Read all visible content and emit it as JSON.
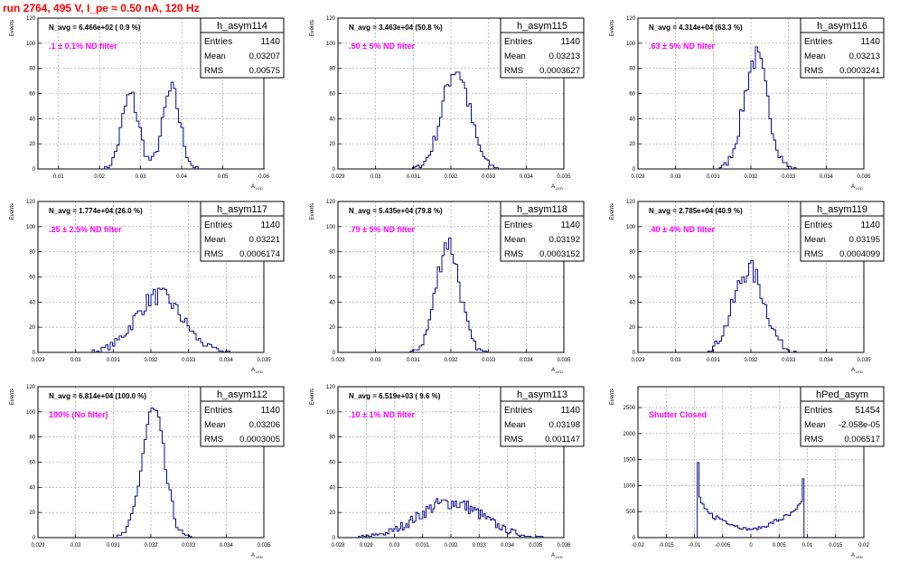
{
  "title": "run 2764,   495 V, I_pe ≈ 0.50 nA, 120 Hz",
  "colors": {
    "hist": "#0a0a8c",
    "label": "#ff00ff",
    "title": "#ff0000",
    "grid": "#999999"
  },
  "ylabel": "Events",
  "xlabel_main": "A",
  "xlabel_sub": "LED",
  "chart_data": [
    {
      "type": "histogram",
      "name": "h_asym114",
      "navg": "N_avg = 6.466e+02 ( 0.9 %)",
      "label": ".1 ± 0.1% ND filter",
      "stats": [
        {
          "k": "Entries",
          "v": "1140"
        },
        {
          "k": "Mean",
          "v": "0.03207"
        },
        {
          "k": "RMS",
          "v": "0.00575"
        }
      ],
      "xlim": [
        0.005,
        0.06
      ],
      "ylim": [
        0,
        120
      ],
      "xticks": [
        0.01,
        0.02,
        0.03,
        0.04,
        0.05,
        0.06
      ],
      "xtick_labels": [
        "0.01",
        "0.02",
        "0.03",
        "0.04",
        "0.05",
        "0.06"
      ],
      "yticks": [
        0,
        20,
        40,
        60,
        80,
        100,
        120
      ],
      "peaks": [
        {
          "mu": 0.0275,
          "sigma": 0.0021,
          "amp": 58
        },
        {
          "mu": 0.0375,
          "sigma": 0.0021,
          "amp": 62
        }
      ],
      "bin": 0.0006
    },
    {
      "type": "histogram",
      "name": "h_asym115",
      "navg": "N_avg = 3.463e+04 (50.8 %)",
      "label": ".50 ± 5% ND filter",
      "stats": [
        {
          "k": "Entries",
          "v": "1140"
        },
        {
          "k": "Mean",
          "v": "0.03213"
        },
        {
          "k": "RMS",
          "v": "0.0003627"
        }
      ],
      "xlim": [
        0.029,
        0.035
      ],
      "ylim": [
        0,
        120
      ],
      "xticks": [
        0.029,
        0.03,
        0.031,
        0.032,
        0.033,
        0.034,
        0.035
      ],
      "xtick_labels": [
        "0.029",
        "0.03",
        "0.031",
        "0.032",
        "0.033",
        "0.034",
        "0.035"
      ],
      "yticks": [
        0,
        20,
        40,
        60,
        80,
        100,
        120
      ],
      "peaks": [
        {
          "mu": 0.03213,
          "sigma": 0.00036,
          "amp": 80
        }
      ],
      "bin": 6e-05
    },
    {
      "type": "histogram",
      "name": "h_asym116",
      "navg": "N_avg = 4.314e+04 (63.3 %)",
      "label": ".63 ± 5% ND filter",
      "stats": [
        {
          "k": "Entries",
          "v": "1140"
        },
        {
          "k": "Mean",
          "v": "0.03213"
        },
        {
          "k": "RMS",
          "v": "0.0003241"
        }
      ],
      "xlim": [
        0.029,
        0.035
      ],
      "ylim": [
        0,
        120
      ],
      "xticks": [
        0.029,
        0.03,
        0.031,
        0.032,
        0.033,
        0.034,
        0.035
      ],
      "xtick_labels": [
        "0.029",
        "0.03",
        "0.031",
        "0.032",
        "0.033",
        "0.034",
        "0.035"
      ],
      "yticks": [
        0,
        20,
        40,
        60,
        80,
        100,
        120
      ],
      "peaks": [
        {
          "mu": 0.03213,
          "sigma": 0.00032,
          "amp": 88
        }
      ],
      "bin": 6e-05
    },
    {
      "type": "histogram",
      "name": "h_asym117",
      "navg": "N_avg = 1.774e+04 (26.0 %)",
      "label": ".25 ± 2.5% ND filter",
      "stats": [
        {
          "k": "Entries",
          "v": "1140"
        },
        {
          "k": "Mean",
          "v": "0.03221"
        },
        {
          "k": "RMS",
          "v": "0.0006174"
        }
      ],
      "xlim": [
        0.029,
        0.035
      ],
      "ylim": [
        0,
        120
      ],
      "xticks": [
        0.029,
        0.03,
        0.031,
        0.032,
        0.033,
        0.034,
        0.035
      ],
      "xtick_labels": [
        "0.029",
        "0.03",
        "0.031",
        "0.032",
        "0.033",
        "0.034",
        "0.035"
      ],
      "yticks": [
        0,
        20,
        40,
        60,
        80,
        100,
        120
      ],
      "peaks": [
        {
          "mu": 0.03221,
          "sigma": 0.00062,
          "amp": 45
        }
      ],
      "bin": 6e-05
    },
    {
      "type": "histogram",
      "name": "h_asym118",
      "navg": "N_avg = 5.435e+04 (79.8 %)",
      "label": ".79 ± 5% ND filter",
      "stats": [
        {
          "k": "Entries",
          "v": "1140"
        },
        {
          "k": "Mean",
          "v": "0.03192"
        },
        {
          "k": "RMS",
          "v": "0.0003152"
        }
      ],
      "xlim": [
        0.029,
        0.035
      ],
      "ylim": [
        0,
        120
      ],
      "xticks": [
        0.029,
        0.03,
        0.031,
        0.032,
        0.033,
        0.034,
        0.035
      ],
      "xtick_labels": [
        "0.029",
        "0.03",
        "0.031",
        "0.032",
        "0.033",
        "0.034",
        "0.035"
      ],
      "yticks": [
        0,
        20,
        40,
        60,
        80,
        100,
        120
      ],
      "peaks": [
        {
          "mu": 0.03192,
          "sigma": 0.00031,
          "amp": 88
        }
      ],
      "bin": 6e-05
    },
    {
      "type": "histogram",
      "name": "h_asym119",
      "navg": "N_avg = 2.785e+04 (40.9 %)",
      "label": ".40 ± 4% ND filter",
      "stats": [
        {
          "k": "Entries",
          "v": "1140"
        },
        {
          "k": "Mean",
          "v": "0.03195"
        },
        {
          "k": "RMS",
          "v": "0.0004099"
        }
      ],
      "xlim": [
        0.029,
        0.035
      ],
      "ylim": [
        0,
        120
      ],
      "xticks": [
        0.029,
        0.03,
        0.031,
        0.032,
        0.033,
        0.034,
        0.035
      ],
      "xtick_labels": [
        "0.029",
        "0.03",
        "0.031",
        "0.032",
        "0.033",
        "0.034",
        "0.035"
      ],
      "yticks": [
        0,
        20,
        40,
        60,
        80,
        100,
        120
      ],
      "peaks": [
        {
          "mu": 0.03195,
          "sigma": 0.00041,
          "amp": 66
        }
      ],
      "bin": 6e-05
    },
    {
      "type": "histogram",
      "name": "h_asym112",
      "navg": "N_avg = 6.814e+04 (100.0 %)",
      "label": "100% (No filter)",
      "stats": [
        {
          "k": "Entries",
          "v": "1140"
        },
        {
          "k": "Mean",
          "v": "0.03206"
        },
        {
          "k": "RMS",
          "v": "0.0003005"
        }
      ],
      "xlim": [
        0.029,
        0.035
      ],
      "ylim": [
        0,
        120
      ],
      "xticks": [
        0.029,
        0.03,
        0.031,
        0.032,
        0.033,
        0.034,
        0.035
      ],
      "xtick_labels": [
        "0.029",
        "0.03",
        "0.031",
        "0.032",
        "0.033",
        "0.034",
        "0.035"
      ],
      "yticks": [
        0,
        20,
        40,
        60,
        80,
        100,
        120
      ],
      "peaks": [
        {
          "mu": 0.03206,
          "sigma": 0.0003,
          "amp": 100
        }
      ],
      "bin": 6e-05
    },
    {
      "type": "histogram",
      "name": "h_asym113",
      "navg": "N_avg = 6.519e+03 ( 9.6 %)",
      "label": ".10 ± 1% ND filter",
      "stats": [
        {
          "k": "Entries",
          "v": "1140"
        },
        {
          "k": "Mean",
          "v": "0.03198"
        },
        {
          "k": "RMS",
          "v": "0.001147"
        }
      ],
      "xlim": [
        0.028,
        0.036
      ],
      "ylim": [
        0,
        120
      ],
      "xticks": [
        0.028,
        0.029,
        0.03,
        0.031,
        0.032,
        0.033,
        0.034,
        0.035,
        0.036
      ],
      "xtick_labels": [
        "0.028",
        "0.029",
        "0.03",
        "0.031",
        "0.032",
        "0.033",
        "0.034",
        "0.035",
        "0.036"
      ],
      "yticks": [
        0,
        20,
        40,
        60,
        80,
        100,
        120
      ],
      "peaks": [
        {
          "mu": 0.03198,
          "sigma": 0.00115,
          "amp": 28
        }
      ],
      "bin": 6e-05
    },
    {
      "type": "histogram",
      "name": "hPed_asym",
      "navg": "",
      "label": "Shutter Closed",
      "stats": [
        {
          "k": "Entries",
          "v": "51454"
        },
        {
          "k": "Mean",
          "v": "-2.058e-05"
        },
        {
          "k": "RMS",
          "v": "0.006517"
        }
      ],
      "xlim": [
        -0.02,
        0.02
      ],
      "ylim": [
        0,
        2900
      ],
      "xticks": [
        -0.02,
        -0.015,
        -0.01,
        -0.005,
        0,
        0.005,
        0.01,
        0.015,
        0.02
      ],
      "xtick_labels": [
        "-0.02",
        "-0.015",
        "-0.01",
        "-0.005",
        "0",
        "0.005",
        "0.01",
        "0.015",
        "0.02"
      ],
      "yticks": [
        0,
        500,
        1000,
        1500,
        2000,
        2500
      ],
      "pedestal": true,
      "support": [
        -0.0095,
        0.0095
      ],
      "bin": 0.0003
    }
  ]
}
